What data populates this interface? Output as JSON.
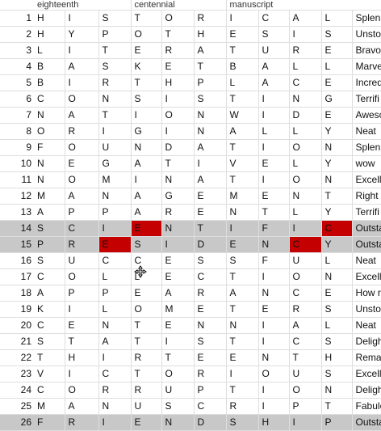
{
  "header_row": [
    "eighteenth",
    "centennial",
    "manuscript"
  ],
  "rows": [
    {
      "n": "1",
      "cells": [
        "H",
        "I",
        "S",
        "T",
        "O",
        "R",
        "I",
        "C",
        "A",
        "L"
      ],
      "word": "Splen",
      "selected": false,
      "red": []
    },
    {
      "n": "2",
      "cells": [
        "H",
        "Y",
        "P",
        "O",
        "T",
        "H",
        "E",
        "S",
        "I",
        "S"
      ],
      "word": "Unsto",
      "selected": false,
      "red": []
    },
    {
      "n": "3",
      "cells": [
        "L",
        "I",
        "T",
        "E",
        "R",
        "A",
        "T",
        "U",
        "R",
        "E"
      ],
      "word": "Bravo",
      "selected": false,
      "red": []
    },
    {
      "n": "4",
      "cells": [
        "B",
        "A",
        "S",
        "K",
        "E",
        "T",
        "B",
        "A",
        "L",
        "L"
      ],
      "word": "Marve",
      "selected": false,
      "red": []
    },
    {
      "n": "5",
      "cells": [
        "B",
        "I",
        "R",
        "T",
        "H",
        "P",
        "L",
        "A",
        "C",
        "E"
      ],
      "word": "Incred",
      "selected": false,
      "red": []
    },
    {
      "n": "6",
      "cells": [
        "C",
        "O",
        "N",
        "S",
        "I",
        "S",
        "T",
        "I",
        "N",
        "G"
      ],
      "word": "Terrifi",
      "selected": false,
      "red": []
    },
    {
      "n": "7",
      "cells": [
        "N",
        "A",
        "T",
        "I",
        "O",
        "N",
        "W",
        "I",
        "D",
        "E"
      ],
      "word": "Aweso",
      "selected": false,
      "red": []
    },
    {
      "n": "8",
      "cells": [
        "O",
        "R",
        "I",
        "G",
        "I",
        "N",
        "A",
        "L",
        "L",
        "Y"
      ],
      "word": "Neat",
      "selected": false,
      "red": []
    },
    {
      "n": "9",
      "cells": [
        "F",
        "O",
        "U",
        "N",
        "D",
        "A",
        "T",
        "I",
        "O",
        "N"
      ],
      "word": "Splen",
      "selected": false,
      "red": []
    },
    {
      "n": "10",
      "cells": [
        "N",
        "E",
        "G",
        "A",
        "T",
        "I",
        "V",
        "E",
        "L",
        "Y"
      ],
      "word": "wow",
      "selected": false,
      "red": []
    },
    {
      "n": "11",
      "cells": [
        "N",
        "O",
        "M",
        "I",
        "N",
        "A",
        "T",
        "I",
        "O",
        "N"
      ],
      "word": "Excelle",
      "selected": false,
      "red": []
    },
    {
      "n": "12",
      "cells": [
        "M",
        "A",
        "N",
        "A",
        "G",
        "E",
        "M",
        "E",
        "N",
        "T"
      ],
      "word": "Right",
      "selected": false,
      "red": []
    },
    {
      "n": "13",
      "cells": [
        "A",
        "P",
        "P",
        "A",
        "R",
        "E",
        "N",
        "T",
        "L",
        "Y"
      ],
      "word": "Terrifi",
      "selected": false,
      "red": []
    },
    {
      "n": "14",
      "cells": [
        "S",
        "C",
        "I",
        "E",
        "N",
        "T",
        "I",
        "F",
        "I",
        "C"
      ],
      "word": "Outsta",
      "selected": true,
      "red": [
        3,
        9
      ]
    },
    {
      "n": "15",
      "cells": [
        "P",
        "R",
        "E",
        "S",
        "I",
        "D",
        "E",
        "N",
        "C",
        "Y"
      ],
      "word": "Outsta",
      "selected": true,
      "red": [
        2,
        8
      ]
    },
    {
      "n": "16",
      "cells": [
        "S",
        "U",
        "C",
        "C",
        "E",
        "S",
        "S",
        "F",
        "U",
        "L"
      ],
      "word": "Neat",
      "selected": false,
      "red": []
    },
    {
      "n": "17",
      "cells": [
        "C",
        "O",
        "L",
        "L",
        "E",
        "C",
        "T",
        "I",
        "O",
        "N"
      ],
      "word": "Excelle",
      "selected": false,
      "red": []
    },
    {
      "n": "18",
      "cells": [
        "A",
        "P",
        "P",
        "E",
        "A",
        "R",
        "A",
        "N",
        "C",
        "E"
      ],
      "word": "How r",
      "selected": false,
      "red": []
    },
    {
      "n": "19",
      "cells": [
        "K",
        "I",
        "L",
        "O",
        "M",
        "E",
        "T",
        "E",
        "R",
        "S"
      ],
      "word": "Unsto",
      "selected": false,
      "red": []
    },
    {
      "n": "20",
      "cells": [
        "C",
        "E",
        "N",
        "T",
        "E",
        "N",
        "N",
        "I",
        "A",
        "L"
      ],
      "word": "Neat",
      "selected": false,
      "red": []
    },
    {
      "n": "21",
      "cells": [
        "S",
        "T",
        "A",
        "T",
        "I",
        "S",
        "T",
        "I",
        "C",
        "S"
      ],
      "word": "Deligh",
      "selected": false,
      "red": []
    },
    {
      "n": "22",
      "cells": [
        "T",
        "H",
        "I",
        "R",
        "T",
        "E",
        "E",
        "N",
        "T",
        "H"
      ],
      "word": "Rema",
      "selected": false,
      "red": []
    },
    {
      "n": "23",
      "cells": [
        "V",
        "I",
        "C",
        "T",
        "O",
        "R",
        "I",
        "O",
        "U",
        "S"
      ],
      "word": "Excelle",
      "selected": false,
      "red": []
    },
    {
      "n": "24",
      "cells": [
        "C",
        "O",
        "R",
        "R",
        "U",
        "P",
        "T",
        "I",
        "O",
        "N"
      ],
      "word": "Deligh",
      "selected": false,
      "red": []
    },
    {
      "n": "25",
      "cells": [
        "M",
        "A",
        "N",
        "U",
        "S",
        "C",
        "R",
        "I",
        "P",
        "T"
      ],
      "word": "Fabulo",
      "selected": false,
      "red": []
    },
    {
      "n": "26",
      "cells": [
        "F",
        "R",
        "I",
        "E",
        "N",
        "D",
        "S",
        "H",
        "I",
        "P"
      ],
      "word": "Outsta",
      "selected": true,
      "red": []
    }
  ],
  "colors": {
    "selected_row": "#c8c8c8",
    "highlight": "#c50000",
    "gridline": "#dedede"
  }
}
